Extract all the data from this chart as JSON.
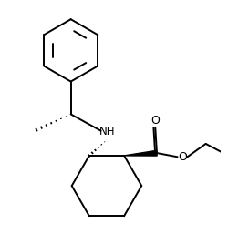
{
  "background_color": "#ffffff",
  "line_color": "#000000",
  "line_width": 1.4,
  "figsize": [
    2.51,
    2.68
  ],
  "dpi": 100,
  "nh_label": "NH",
  "o_ester_label": "O",
  "o_carbonyl_label": "O"
}
